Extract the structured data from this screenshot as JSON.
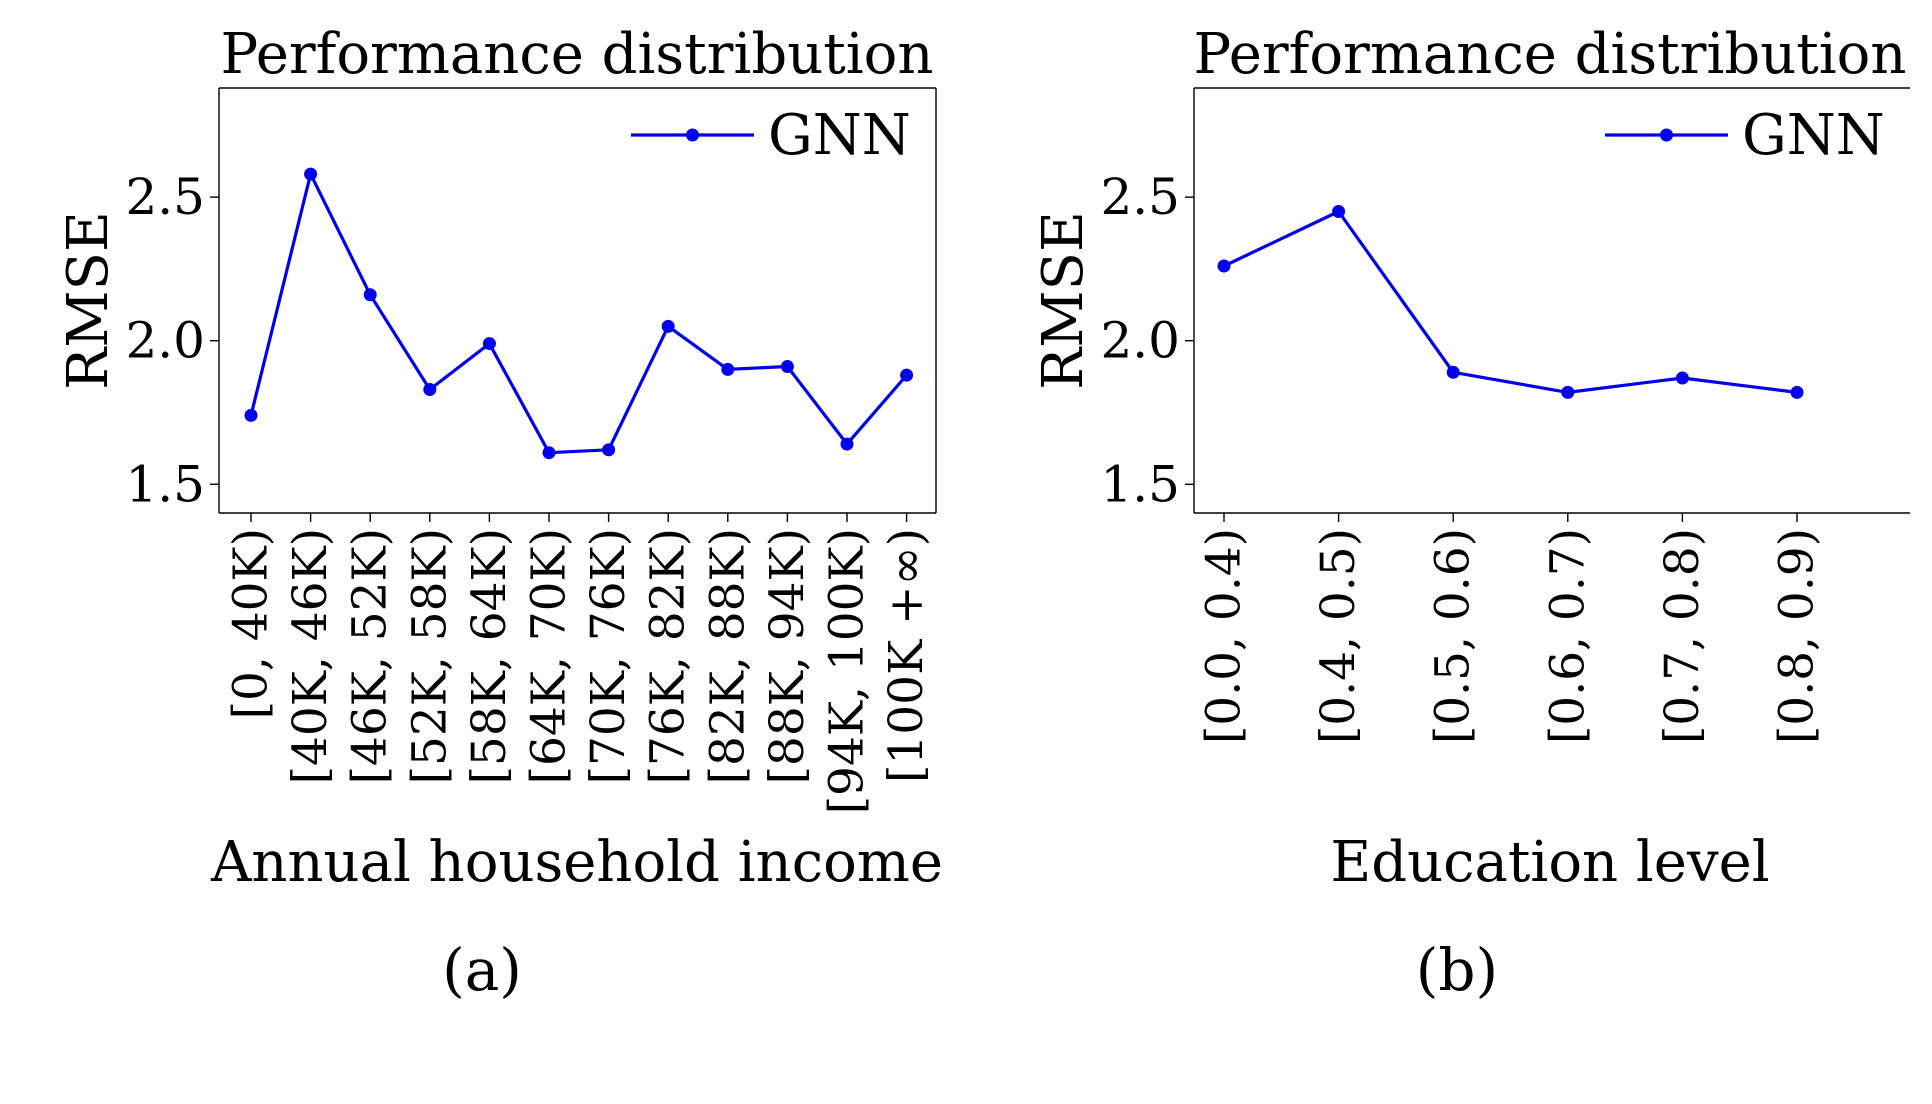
{
  "chart_data": [
    {
      "type": "line",
      "title": "Performance distribution",
      "xlabel": "Annual household income",
      "ylabel": "RMSE",
      "ylim": [
        1.4,
        2.88
      ],
      "yticks": [
        1.5,
        2.0,
        2.5
      ],
      "ytick_labels": [
        "1.5",
        "2.0",
        "2.5"
      ],
      "categories": [
        "[0, 40K)",
        "[40K, 46K)",
        "[46K, 52K)",
        "[52K, 58K)",
        "[58K, 64K)",
        "[64K, 70K)",
        "[70K, 76K)",
        "[76K, 82K)",
        "[82K, 88K)",
        "[88K, 94K)",
        "[94K, 100K)",
        "[100K +∞)"
      ],
      "series": [
        {
          "name": "GNN",
          "color": "#0000ee",
          "marker": "circle",
          "values": [
            1.74,
            2.58,
            2.16,
            1.83,
            1.99,
            1.61,
            1.62,
            2.05,
            1.9,
            1.91,
            1.64,
            1.88
          ]
        }
      ],
      "legend": "top-right",
      "grid": false,
      "panel_label": "(a)"
    },
    {
      "type": "line",
      "title": "Performance distribution",
      "xlabel": "Education level",
      "ylabel": "RMSE",
      "ylim": [
        1.4,
        2.88
      ],
      "yticks": [
        1.5,
        2.0,
        2.5
      ],
      "ytick_labels": [
        "1.5",
        "2.0",
        "2.5"
      ],
      "categories": [
        "[0.0, 0.4)",
        "[0.4, 0.5)",
        "[0.5, 0.6)",
        "[0.6, 0.7)",
        "[0.7, 0.8)",
        "[0.8, 0.9)"
      ],
      "series": [
        {
          "name": "GNN",
          "color": "#0000ee",
          "marker": "circle",
          "values": [
            2.26,
            2.45,
            1.89,
            1.82,
            1.87,
            1.82
          ]
        }
      ],
      "legend": "top-right",
      "grid": false,
      "panel_label": "(b)"
    }
  ]
}
